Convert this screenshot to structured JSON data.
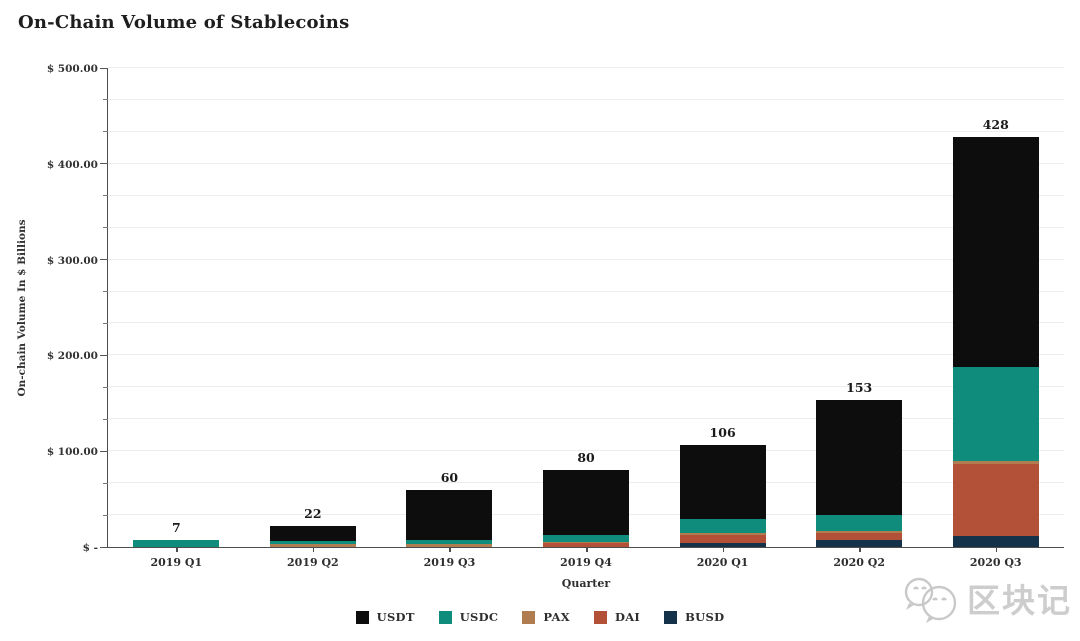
{
  "title": "On-Chain Volume of Stablecoins",
  "axes": {
    "y_title": "On-chain Volume In $ Billions",
    "x_title": "Quarter",
    "y_tick_labels": [
      "$ -",
      "$ 100.00",
      "$ 200.00",
      "$ 300.00",
      "$ 400.00",
      "$ 500.00"
    ],
    "y_max": 500,
    "y_minor_divisions": 15
  },
  "chart_data": {
    "type": "bar",
    "stacked": true,
    "title": "On-Chain Volume of Stablecoins",
    "xlabel": "Quarter",
    "ylabel": "On-chain Volume In $ Billions",
    "ylim": [
      0,
      500
    ],
    "grid": true,
    "legend_position": "bottom",
    "categories": [
      "2019 Q1",
      "2019 Q2",
      "2019 Q3",
      "2019 Q4",
      "2020 Q1",
      "2020 Q2",
      "2020 Q3"
    ],
    "totals": [
      7,
      22,
      60,
      80,
      106,
      153,
      428
    ],
    "total_labels": [
      "7",
      "22",
      "60",
      "80",
      "106",
      "153",
      "428"
    ],
    "series": [
      {
        "name": "USDT",
        "color": "#0d0d0d",
        "values": [
          0,
          16,
          53,
          67,
          77,
          120,
          240
        ]
      },
      {
        "name": "USDC",
        "color": "#0f8c7c",
        "values": [
          7,
          3,
          4,
          8,
          14,
          16,
          98
        ]
      },
      {
        "name": "PAX",
        "color": "#b07d50",
        "values": [
          0,
          3,
          3,
          1,
          2,
          2,
          3
        ]
      },
      {
        "name": "DAI",
        "color": "#b35138",
        "values": [
          0,
          0,
          0,
          4,
          9,
          8,
          75
        ]
      },
      {
        "name": "BUSD",
        "color": "#14324a",
        "values": [
          0,
          0,
          0,
          0,
          4,
          7,
          12
        ]
      }
    ],
    "stack_order_bottom_to_top": [
      "BUSD",
      "DAI",
      "PAX",
      "USDC",
      "USDT"
    ],
    "legend_order": [
      "USDT",
      "USDC",
      "PAX",
      "DAI",
      "BUSD"
    ]
  },
  "watermark": {
    "text": "区块记",
    "icon": "wechat-chat-bubbles-icon"
  }
}
